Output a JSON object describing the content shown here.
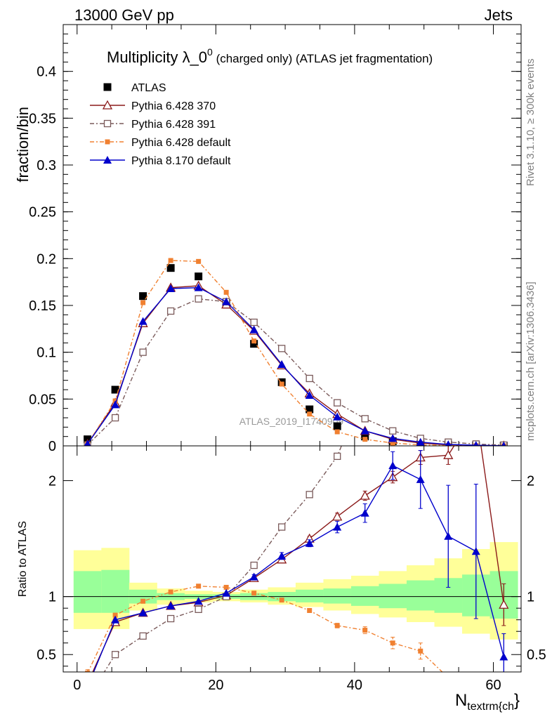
{
  "header": {
    "left": "13000 GeV pp",
    "right": "Jets"
  },
  "side_text": {
    "top": "Rivet 3.1.10, ≥ 300k events",
    "bottom": "mcplots.cern.ch [arXiv:1306.3436]"
  },
  "chart_data": [
    {
      "type": "scatter",
      "panel": "main",
      "title_main": "Multiplicity λ_0",
      "title_sup": "0",
      "title_rest": " (charged only) (ATLAS jet fragmentation)",
      "ylabel": "fraction/bin",
      "watermark": "ATLAS_2019_I1740909",
      "xlim": [
        -2,
        64
      ],
      "ylim": [
        0,
        0.45
      ],
      "yticks": [
        0,
        0.05,
        0.1,
        0.15,
        0.2,
        0.25,
        0.3,
        0.35,
        0.4
      ],
      "ytick_labels": [
        "0",
        "0.05",
        "0.1",
        "0.15",
        "0.2",
        "0.25",
        "0.3",
        "0.35",
        "0.4"
      ],
      "legend_position": "top-left",
      "series": [
        {
          "name": "ATLAS",
          "color": "#000000",
          "marker": "square-filled",
          "x": [
            1.5,
            5.5,
            9.5,
            13.5,
            17.5,
            21.5,
            25.5,
            29.5,
            33.5,
            37.5,
            41.5,
            45.5,
            49.5,
            53.5,
            57.5,
            61.5
          ],
          "y": [
            0.007,
            0.06,
            0.16,
            0.19,
            0.181,
            0.153,
            0.109,
            0.068,
            0.039,
            0.021,
            0.01,
            0.005,
            0.002,
            0.001,
            0.0005,
            0.0002
          ]
        },
        {
          "name": "Pythia 6.428 370",
          "color": "#8b1a1a",
          "marker": "triangle-open",
          "dash": "",
          "x": [
            1.5,
            5.5,
            9.5,
            13.5,
            17.5,
            21.5,
            25.5,
            29.5,
            33.5,
            37.5,
            41.5,
            45.5,
            49.5,
            53.5,
            57.5,
            61.5
          ],
          "y": [
            0.002,
            0.046,
            0.131,
            0.169,
            0.171,
            0.151,
            0.123,
            0.086,
            0.056,
            0.034,
            0.016,
            0.007,
            0.003,
            0.001,
            0.0005,
            0.0002
          ]
        },
        {
          "name": "Pythia 6.428 391",
          "color": "#7a5a5a",
          "marker": "square-open",
          "dash": "6,3,2,3",
          "x": [
            1.5,
            5.5,
            9.5,
            13.5,
            17.5,
            21.5,
            25.5,
            29.5,
            33.5,
            37.5,
            41.5,
            45.5,
            49.5,
            53.5,
            57.5,
            61.5
          ],
          "y": [
            0.001,
            0.03,
            0.1,
            0.144,
            0.157,
            0.154,
            0.132,
            0.104,
            0.072,
            0.046,
            0.029,
            0.016,
            0.008,
            0.004,
            0.002,
            0.0008
          ]
        },
        {
          "name": "Pythia 6.428 default",
          "color": "#f08030",
          "marker": "square-filled-small",
          "dash": "6,3,2,3",
          "x": [
            1.5,
            5.5,
            9.5,
            13.5,
            17.5,
            21.5,
            25.5,
            29.5,
            33.5,
            37.5,
            41.5,
            45.5,
            49.5,
            53.5,
            57.5,
            61.5
          ],
          "y": [
            0.002,
            0.048,
            0.153,
            0.198,
            0.197,
            0.164,
            0.112,
            0.066,
            0.034,
            0.015,
            0.007,
            0.003,
            0.001,
            0.0003,
            0.0001,
            5e-05
          ]
        },
        {
          "name": "Pythia 8.170 default",
          "color": "#0000cc",
          "marker": "triangle-filled",
          "dash": "",
          "x": [
            1.5,
            5.5,
            9.5,
            13.5,
            17.5,
            21.5,
            25.5,
            29.5,
            33.5,
            37.5,
            41.5,
            45.5,
            49.5,
            53.5,
            57.5,
            61.5
          ],
          "y": [
            0.002,
            0.044,
            0.133,
            0.168,
            0.169,
            0.154,
            0.124,
            0.087,
            0.054,
            0.031,
            0.016,
            0.008,
            0.004,
            0.0015,
            0.0007,
            0.0001
          ]
        }
      ]
    },
    {
      "type": "line",
      "panel": "ratio",
      "ylabel": "Ratio to ATLAS",
      "xlabel": "N",
      "xlabel_sub": "textrm{ch",
      "xlabel_tail": "}",
      "xlim": [
        -2,
        64
      ],
      "ylim": [
        0.35,
        2.3
      ],
      "yticks": [
        0.5,
        1,
        2
      ],
      "ytick_labels": [
        "0.5",
        "1",
        "2"
      ],
      "xticks": [
        0,
        20,
        40,
        60
      ],
      "xtick_labels": [
        "0",
        "20",
        "40",
        "60"
      ],
      "band_edges": [
        -0.5,
        3.5,
        7.5,
        11.5,
        15.5,
        19.5,
        23.5,
        27.5,
        31.5,
        35.5,
        39.5,
        43.5,
        47.5,
        51.5,
        55.5,
        59.5,
        63.5
      ],
      "band_yellow_low": [
        0.72,
        0.72,
        0.88,
        0.93,
        0.95,
        0.96,
        0.95,
        0.93,
        0.91,
        0.88,
        0.85,
        0.82,
        0.78,
        0.74,
        0.68,
        0.63,
        0.59
      ],
      "band_yellow_high": [
        1.4,
        1.42,
        1.12,
        1.07,
        1.05,
        1.04,
        1.06,
        1.08,
        1.12,
        1.15,
        1.18,
        1.22,
        1.27,
        1.33,
        1.41,
        1.47,
        1.52
      ],
      "band_green_low": [
        0.86,
        0.86,
        0.94,
        0.97,
        0.98,
        0.98,
        0.97,
        0.96,
        0.95,
        0.94,
        0.92,
        0.9,
        0.88,
        0.86,
        0.83,
        0.81,
        0.79
      ],
      "band_green_high": [
        1.22,
        1.23,
        1.06,
        1.03,
        1.02,
        1.02,
        1.03,
        1.04,
        1.06,
        1.07,
        1.09,
        1.11,
        1.14,
        1.16,
        1.19,
        1.22,
        1.25
      ],
      "series": [
        {
          "name": "Pythia 6.428 370",
          "color": "#8b1a1a",
          "marker": "triangle-open",
          "dash": "",
          "x": [
            1.5,
            5.5,
            9.5,
            13.5,
            17.5,
            21.5,
            25.5,
            29.5,
            33.5,
            37.5,
            41.5,
            45.5,
            49.5,
            53.5,
            57.5,
            61.5
          ],
          "y": [
            0.25,
            0.78,
            0.86,
            0.92,
            0.95,
            1.01,
            1.16,
            1.32,
            1.5,
            1.69,
            1.87,
            2.03,
            2.2,
            2.22,
            2.6,
            0.93
          ],
          "err": [
            0,
            0,
            0,
            0,
            0,
            0,
            0,
            0,
            0.02,
            0.03,
            0.04,
            0.05,
            0.06,
            0.08,
            0,
            0.18
          ]
        },
        {
          "name": "Pythia 6.428 391",
          "color": "#7a5a5a",
          "marker": "square-open",
          "dash": "6,3,2,3",
          "x": [
            1.5,
            5.5,
            9.5,
            13.5,
            17.5,
            21.5,
            25.5,
            29.5,
            33.5,
            37.5,
            41.5
          ],
          "y": [
            0.12,
            0.5,
            0.66,
            0.81,
            0.89,
            1.0,
            1.27,
            1.6,
            1.88,
            2.21,
            2.8
          ],
          "err": [
            0,
            0,
            0,
            0,
            0,
            0,
            0,
            0,
            0,
            0,
            0
          ]
        },
        {
          "name": "Pythia 6.428 default",
          "color": "#f08030",
          "marker": "square-filled-small",
          "dash": "6,3,2,3",
          "x": [
            1.5,
            5.5,
            9.5,
            13.5,
            17.5,
            21.5,
            25.5,
            29.5,
            33.5,
            37.5,
            41.5,
            45.5,
            49.5,
            53.5
          ],
          "y": [
            0.34,
            0.84,
            0.96,
            1.04,
            1.09,
            1.08,
            1.03,
            0.97,
            0.88,
            0.75,
            0.71,
            0.6,
            0.53,
            0.3
          ],
          "err": [
            0.03,
            0,
            0,
            0,
            0,
            0,
            0,
            0,
            0,
            0.02,
            0.03,
            0.05,
            0.07,
            0
          ]
        },
        {
          "name": "Pythia 8.170 default",
          "color": "#0000cc",
          "marker": "triangle-filled",
          "dash": "",
          "x": [
            1.5,
            5.5,
            9.5,
            13.5,
            17.5,
            21.5,
            25.5,
            29.5,
            33.5,
            37.5,
            41.5,
            45.5,
            49.5,
            53.5,
            57.5,
            61.5
          ],
          "y": [
            0.22,
            0.8,
            0.86,
            0.92,
            0.96,
            1.03,
            1.17,
            1.35,
            1.46,
            1.6,
            1.72,
            2.13,
            2.01,
            1.52,
            1.39,
            0.48
          ],
          "err": [
            0,
            0,
            0,
            0,
            0,
            0,
            0.02,
            0.03,
            0.03,
            0.05,
            0.08,
            0.12,
            0.25,
            0.44,
            0.58,
            0.2
          ]
        }
      ]
    }
  ]
}
